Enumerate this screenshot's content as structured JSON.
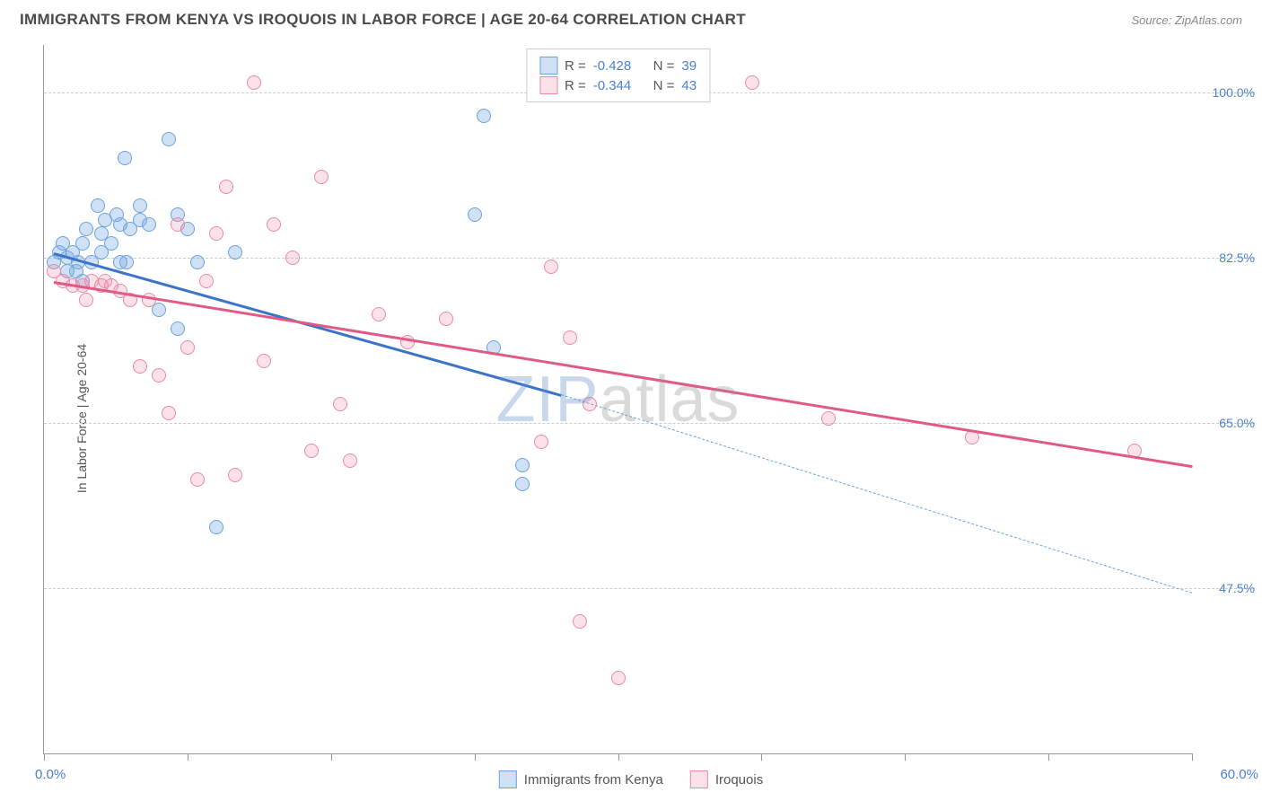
{
  "title": "IMMIGRANTS FROM KENYA VS IROQUOIS IN LABOR FORCE | AGE 20-64 CORRELATION CHART",
  "source": "Source: ZipAtlas.com",
  "ylabel": "In Labor Force | Age 20-64",
  "watermark": {
    "z": "ZIP",
    "rest": "atlas"
  },
  "chart": {
    "type": "scatter",
    "xlim": [
      0,
      60
    ],
    "ylim": [
      30,
      105
    ],
    "x_min_label": "0.0%",
    "x_max_label": "60.0%",
    "y_ticks": [
      47.5,
      65.0,
      82.5,
      100.0
    ],
    "y_tick_labels": [
      "47.5%",
      "65.0%",
      "82.5%",
      "100.0%"
    ],
    "x_tick_positions": [
      0,
      7.5,
      15,
      22.5,
      30,
      37.5,
      45,
      52.5,
      60
    ],
    "grid_color": "#cccccc",
    "axis_color": "#999999",
    "watermark_opacity": 0.35,
    "series": [
      {
        "key": "kenya",
        "label": "Immigrants from Kenya",
        "color_fill": "rgba(120,170,225,0.35)",
        "color_stroke": "#6aa3de",
        "line_color": "#3b73c9",
        "dash_color": "#6aa3de",
        "marker_radius": 8,
        "R": "-0.428",
        "N": "39",
        "regression": {
          "x1": 0.5,
          "y1": 83,
          "x2": 27,
          "y2": 68,
          "dash_to_x": 60,
          "dash_to_y": 47
        },
        "points": [
          [
            0.5,
            82
          ],
          [
            0.8,
            83
          ],
          [
            1.0,
            84
          ],
          [
            1.2,
            82.5
          ],
          [
            1.5,
            83
          ],
          [
            1.7,
            81
          ],
          [
            2.0,
            84
          ],
          [
            2.2,
            85.5
          ],
          [
            2.5,
            82
          ],
          [
            2.8,
            88
          ],
          [
            3.0,
            83
          ],
          [
            3.2,
            86.5
          ],
          [
            3.5,
            84
          ],
          [
            3.8,
            87
          ],
          [
            4.0,
            86
          ],
          [
            4.2,
            93
          ],
          [
            4.3,
            82
          ],
          [
            4.5,
            85.5
          ],
          [
            5.0,
            86.5
          ],
          [
            5.0,
            88
          ],
          [
            5.5,
            86
          ],
          [
            6.0,
            77
          ],
          [
            6.5,
            95
          ],
          [
            7.0,
            75
          ],
          [
            7.0,
            87
          ],
          [
            7.5,
            85.5
          ],
          [
            8.0,
            82
          ],
          [
            9.0,
            54
          ],
          [
            10.0,
            83
          ],
          [
            22.5,
            87
          ],
          [
            23.0,
            97.5
          ],
          [
            23.5,
            73
          ],
          [
            25.0,
            60.5
          ],
          [
            25.0,
            58.5
          ],
          [
            1.2,
            81
          ],
          [
            1.8,
            82
          ],
          [
            2.0,
            80
          ],
          [
            3.0,
            85
          ],
          [
            4.0,
            82
          ]
        ]
      },
      {
        "key": "iroquois",
        "label": "Iroquois",
        "color_fill": "rgba(240,140,165,0.25)",
        "color_stroke": "#e88aa5",
        "line_color": "#e05a85",
        "marker_radius": 8,
        "R": "-0.344",
        "N": "43",
        "regression": {
          "x1": 0.5,
          "y1": 80,
          "x2": 60,
          "y2": 60.5
        },
        "points": [
          [
            0.5,
            81
          ],
          [
            1.0,
            80
          ],
          [
            1.5,
            79.5
          ],
          [
            2.0,
            79.5
          ],
          [
            2.5,
            80
          ],
          [
            3.0,
            79.5
          ],
          [
            3.5,
            79.5
          ],
          [
            4.0,
            79
          ],
          [
            4.5,
            78
          ],
          [
            5.0,
            71
          ],
          [
            5.5,
            78
          ],
          [
            6.0,
            70
          ],
          [
            6.5,
            66
          ],
          [
            7.0,
            86
          ],
          [
            7.5,
            73
          ],
          [
            8.0,
            59
          ],
          [
            8.5,
            80
          ],
          [
            9.0,
            85
          ],
          [
            9.5,
            90
          ],
          [
            10.0,
            59.5
          ],
          [
            11.0,
            101
          ],
          [
            11.5,
            71.5
          ],
          [
            12.0,
            86
          ],
          [
            13.0,
            82.5
          ],
          [
            14.0,
            62
          ],
          [
            14.5,
            91
          ],
          [
            15.5,
            67
          ],
          [
            16.0,
            61
          ],
          [
            17.5,
            76.5
          ],
          [
            19.0,
            73.5
          ],
          [
            21.0,
            76
          ],
          [
            26.0,
            63
          ],
          [
            26.5,
            81.5
          ],
          [
            27.5,
            74
          ],
          [
            28.0,
            44
          ],
          [
            28.5,
            67
          ],
          [
            30.0,
            38
          ],
          [
            37.0,
            101
          ],
          [
            41.0,
            65.5
          ],
          [
            48.5,
            63.5
          ],
          [
            57.0,
            62
          ],
          [
            2.2,
            78
          ],
          [
            3.2,
            80
          ]
        ]
      }
    ],
    "legend_top": {
      "r_label": "R =",
      "n_label": "N ="
    },
    "legend_bottom": [
      {
        "series": "kenya"
      },
      {
        "series": "iroquois"
      }
    ]
  }
}
